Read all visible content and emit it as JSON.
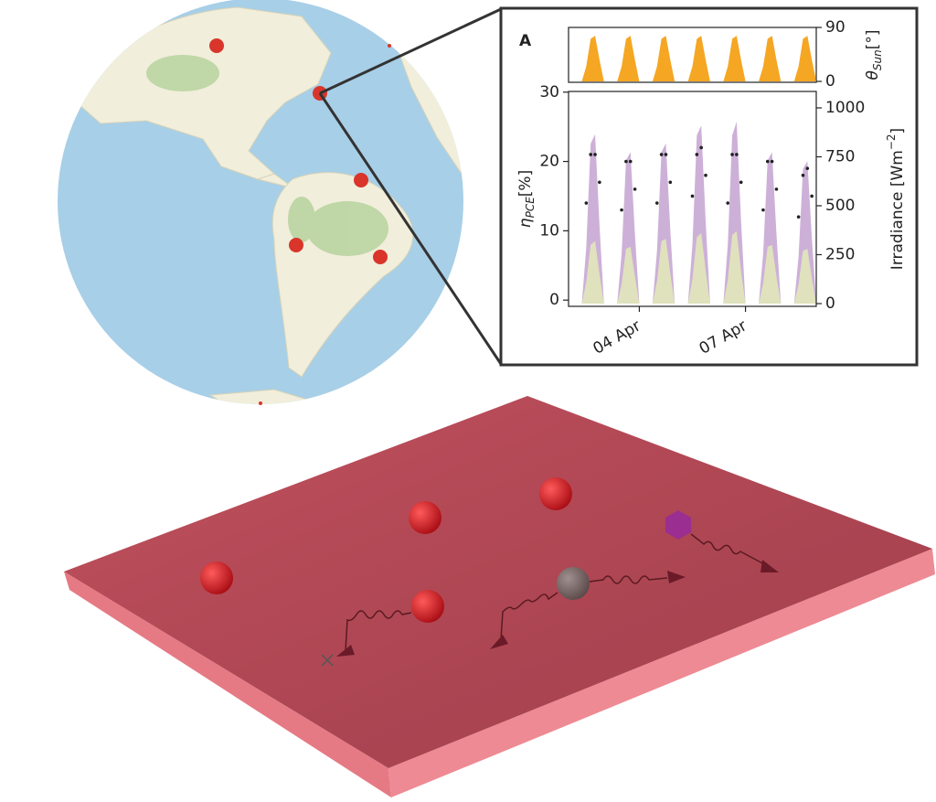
{
  "chart_data": [
    {
      "type": "area",
      "ylabel": {
        "symbol": "θ",
        "subscript": "Sun",
        "unit": "[°]"
      },
      "yaxis_side": "right",
      "x": [
        2,
        2.125,
        2.25,
        2.375,
        2.5,
        2.625,
        2.75,
        2.875,
        3,
        3.125,
        3.25,
        3.375,
        3.5,
        3.625,
        3.75,
        3.875,
        4,
        4.125,
        4.25,
        4.375,
        4.5,
        4.625,
        4.75,
        4.875,
        5,
        5.125,
        5.25,
        5.375,
        5.5,
        5.625,
        5.75,
        5.875,
        6,
        6.125,
        6.25,
        6.375,
        6.5,
        6.625,
        6.75,
        6.875,
        7,
        7.125,
        7.25,
        7.375,
        7.5,
        7.625,
        7.75,
        7.875,
        8,
        8.125,
        8.25,
        8.375,
        8.5,
        8.625,
        8.75,
        8.875,
        9
      ],
      "xlim": [
        2,
        9
      ],
      "ylim": [
        -1.5,
        90
      ],
      "yticks": [
        0,
        90
      ],
      "color": "#f5a623",
      "values": [
        0,
        0,
        0,
        0,
        25,
        71,
        76,
        36,
        0,
        0,
        0,
        0,
        25,
        71,
        76,
        36,
        0,
        0,
        0,
        0,
        25,
        71,
        76,
        36,
        0,
        0,
        0,
        0,
        25,
        71,
        76,
        36,
        0,
        0,
        0,
        0,
        25,
        71,
        76,
        36,
        0,
        0,
        0,
        0,
        25,
        71,
        76,
        36,
        0,
        0,
        0,
        0,
        25,
        71,
        76,
        36,
        0
      ]
    },
    {
      "type": "line",
      "title": "A",
      "x": [
        2,
        2.125,
        2.25,
        2.375,
        2.5,
        2.625,
        2.75,
        2.875,
        3,
        3.125,
        3.25,
        3.375,
        3.5,
        3.625,
        3.75,
        3.875,
        4,
        4.125,
        4.25,
        4.375,
        4.5,
        4.625,
        4.75,
        4.875,
        5,
        5.125,
        5.25,
        5.375,
        5.5,
        5.625,
        5.75,
        5.875,
        6,
        6.125,
        6.25,
        6.375,
        6.5,
        6.625,
        6.75,
        6.875,
        7,
        7.125,
        7.25,
        7.375,
        7.5,
        7.625,
        7.75,
        7.875,
        8,
        8.125,
        8.25,
        8.375,
        8.5,
        8.625,
        8.75,
        8.875,
        9
      ],
      "xlim": [
        2,
        9
      ],
      "xticks": [
        {
          "value": 4,
          "label": "04 Apr"
        },
        {
          "value": 7,
          "label": "07 Apr"
        }
      ],
      "ylim": [
        -0.9,
        30.1
      ],
      "yticks": [
        0,
        10,
        20,
        30
      ],
      "ylabel": {
        "symbol": "η",
        "subscript": "PCE",
        "unit": "[%]"
      },
      "y2lim": [
        -14,
        1084
      ],
      "y2ticks": [
        0,
        250,
        500,
        750,
        1000
      ],
      "y2label": {
        "text": "Irradiance [Wm",
        "superscript": "−2",
        "suffix": "]"
      },
      "series": [
        {
          "axis": "y2",
          "style": "area",
          "color": "#cdb0d8",
          "values": [
            0,
            0,
            0,
            0,
            285,
            817,
            865,
            399,
            0,
            0,
            0,
            0,
            255,
            731,
            774,
            357,
            0,
            0,
            0,
            0,
            270,
            774,
            819,
            378,
            0,
            0,
            0,
            0,
            300,
            860,
            910,
            420,
            0,
            0,
            0,
            0,
            300,
            860,
            930,
            420,
            0,
            0,
            0,
            0,
            255,
            731,
            774,
            357,
            0,
            0,
            0,
            0,
            240,
            688,
            728,
            336,
            0
          ]
        },
        {
          "axis": "y2",
          "style": "area",
          "color": "#dfe2bd",
          "values": [
            0,
            0,
            0,
            0,
            110,
            300,
            320,
            150,
            0,
            0,
            0,
            0,
            100,
            280,
            290,
            140,
            0,
            0,
            0,
            0,
            115,
            320,
            330,
            155,
            0,
            0,
            0,
            0,
            125,
            340,
            360,
            170,
            0,
            0,
            0,
            0,
            120,
            350,
            370,
            165,
            0,
            0,
            0,
            0,
            105,
            290,
            300,
            140,
            0,
            0,
            0,
            0,
            100,
            270,
            280,
            130,
            0
          ]
        },
        {
          "style": "dots",
          "color": "#222222",
          "values": [
            null,
            null,
            null,
            null,
            14,
            21,
            21,
            17,
            null,
            null,
            null,
            null,
            13,
            20,
            20,
            16,
            null,
            null,
            null,
            null,
            14,
            21,
            21,
            17,
            null,
            null,
            null,
            null,
            15,
            21,
            22,
            18,
            null,
            null,
            null,
            null,
            14,
            21,
            21,
            17,
            null,
            null,
            null,
            null,
            13,
            20,
            20,
            16,
            null,
            null,
            null,
            null,
            12,
            18,
            19,
            15,
            null
          ]
        }
      ]
    }
  ]
}
